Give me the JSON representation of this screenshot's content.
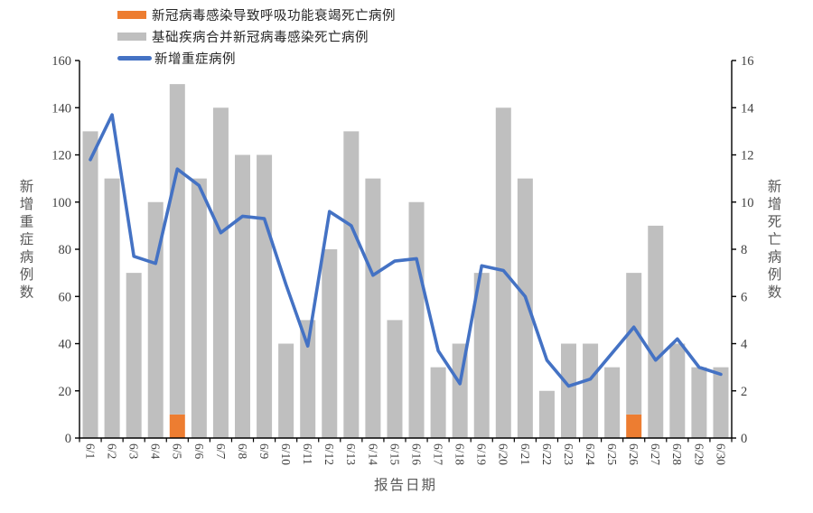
{
  "chart_data": {
    "type": "bar",
    "subtype": "stacked-bar-with-line-combo",
    "categories": [
      "6/1",
      "6/2",
      "6/3",
      "6/4",
      "6/5",
      "6/6",
      "6/7",
      "6/8",
      "6/9",
      "6/10",
      "6/11",
      "6/12",
      "6/13",
      "6/14",
      "6/15",
      "6/16",
      "6/17",
      "6/18",
      "6/19",
      "6/20",
      "6/21",
      "6/22",
      "6/23",
      "6/24",
      "6/25",
      "6/26",
      "6/27",
      "6/28",
      "6/29",
      "6/30"
    ],
    "series": [
      {
        "name": "新冠病毒感染导致呼吸功能衰竭死亡病例",
        "type": "bar",
        "axis": "right",
        "stack": "deaths",
        "color": "#ED7D31",
        "values": [
          0,
          0,
          0,
          0,
          1,
          0,
          0,
          0,
          0,
          0,
          0,
          0,
          0,
          0,
          0,
          0,
          0,
          0,
          0,
          0,
          0,
          0,
          0,
          0,
          0,
          1,
          0,
          0,
          0,
          0
        ]
      },
      {
        "name": "基础疾病合并新冠病毒感染死亡病例",
        "type": "bar",
        "axis": "right",
        "stack": "deaths",
        "color": "#BFBFBF",
        "values": [
          13,
          11,
          7,
          10,
          14,
          11,
          14,
          12,
          12,
          4,
          5,
          8,
          13,
          11,
          5,
          10,
          3,
          4,
          7,
          14,
          11,
          2,
          4,
          4,
          3,
          6,
          9,
          4,
          3,
          3
        ]
      },
      {
        "name": "新增重症病例",
        "type": "line",
        "axis": "left",
        "color": "#4472C4",
        "values": [
          118,
          137,
          77,
          74,
          114,
          107,
          87,
          94,
          93,
          65,
          39,
          96,
          90,
          69,
          75,
          76,
          37,
          23,
          73,
          71,
          60,
          33,
          22,
          25,
          36,
          47,
          33,
          42,
          30,
          27
        ]
      }
    ],
    "left_axis": {
      "title": "新增重症病例数",
      "min": 0,
      "max": 160,
      "step": 20,
      "ticks": [
        0,
        20,
        40,
        60,
        80,
        100,
        120,
        140,
        160
      ]
    },
    "right_axis": {
      "title": "新增死亡病例数",
      "min": 0,
      "max": 16,
      "step": 2,
      "ticks": [
        0,
        2,
        4,
        6,
        8,
        10,
        12,
        14,
        16
      ]
    },
    "xlabel": "报告日期",
    "legend_position": "top-left",
    "grid": false,
    "colors": {
      "axis_line": "#000000",
      "tick_text": "#404040",
      "axis_title_text": "#595959",
      "legend_text": "#262626",
      "background": "#FFFFFF"
    }
  }
}
